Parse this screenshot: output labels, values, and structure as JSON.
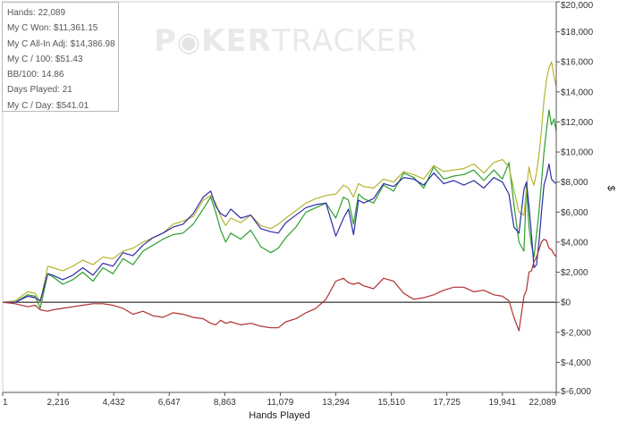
{
  "watermark": {
    "prefix": "P",
    "suffix": "KER",
    "bold_tail": "TRACKER"
  },
  "stats": [
    "Hands: 22,089",
    "My C Won: $11,361.15",
    "My C All-In Adj: $14,386.98",
    "My C / 100: $51.43",
    "BB/100: 14.86",
    "Days Played: 21",
    "My C / Day: $541.01"
  ],
  "chart_data": {
    "type": "line",
    "xlabel": "Hands Played",
    "ylabel": "$",
    "xlim": [
      1,
      22089
    ],
    "ylim": [
      -6000,
      20000
    ],
    "x_ticks": [
      1,
      2216,
      4432,
      6647,
      8863,
      11079,
      13294,
      15510,
      17725,
      19941,
      22089
    ],
    "x_tick_labels": [
      "1",
      "2,216",
      "4,432",
      "6,647",
      "8,863",
      "11,079",
      "13,294",
      "15,510",
      "17,725",
      "19,941",
      "22,089"
    ],
    "y_ticks": [
      -6000,
      -4000,
      -2000,
      0,
      2000,
      4000,
      6000,
      8000,
      10000,
      12000,
      14000,
      16000,
      18000,
      20000
    ],
    "y_tick_labels": [
      "$-6,000",
      "$-4,000",
      "$-2,000",
      "$0",
      "$2,000",
      "$4,000",
      "$6,000",
      "$8,000",
      "$10,000",
      "$12,000",
      "$14,000",
      "$16,000",
      "$18,000",
      "$20,000"
    ],
    "grid": false,
    "legend": "none",
    "series": [
      {
        "color": "#2e9e2e",
        "x": [
          1,
          500,
          1000,
          1300,
          1500,
          1800,
          2000,
          2400,
          2800,
          3200,
          3600,
          4000,
          4400,
          4800,
          5200,
          5600,
          6000,
          6400,
          6800,
          7200,
          7600,
          8000,
          8300,
          8500,
          8700,
          8900,
          9100,
          9500,
          9900,
          10300,
          10700,
          11000,
          11300,
          11700,
          12100,
          12500,
          12900,
          13294,
          13600,
          13800,
          14000,
          14200,
          14400,
          14800,
          15200,
          15600,
          16000,
          16400,
          16800,
          17200,
          17600,
          18000,
          18400,
          18800,
          19200,
          19600,
          19941,
          20200,
          20400,
          20600,
          20800,
          20900,
          21000,
          21100,
          21200,
          21300,
          21400,
          21500,
          21600,
          21700,
          21800,
          21900,
          22000,
          22089
        ],
        "y": [
          0,
          0,
          500,
          400,
          -400,
          1900,
          1700,
          1200,
          1500,
          2000,
          1400,
          2300,
          1900,
          2900,
          2500,
          3400,
          3800,
          4200,
          4500,
          4600,
          5200,
          6200,
          7000,
          6000,
          4800,
          4000,
          4600,
          4200,
          4800,
          3700,
          3300,
          3600,
          4300,
          5000,
          6000,
          6300,
          6600,
          5600,
          7000,
          6800,
          5200,
          7200,
          6900,
          6600,
          7800,
          7400,
          8600,
          8300,
          7600,
          9000,
          8200,
          8400,
          8500,
          8800,
          8100,
          8800,
          8200,
          9300,
          6500,
          4000,
          3400,
          7800,
          5000,
          3800,
          3000,
          4500,
          6000,
          8000,
          10000,
          11500,
          12800,
          11800,
          12200,
          11361
        ]
      },
      {
        "color": "#b4b432",
        "x": [
          1,
          500,
          1000,
          1300,
          1500,
          1800,
          2000,
          2400,
          2800,
          3200,
          3600,
          4000,
          4400,
          4800,
          5200,
          5600,
          6000,
          6400,
          6800,
          7200,
          7600,
          8000,
          8300,
          8500,
          8700,
          8900,
          9100,
          9500,
          9900,
          10300,
          10700,
          11000,
          11300,
          11700,
          12100,
          12500,
          12900,
          13294,
          13600,
          13800,
          14000,
          14200,
          14400,
          14800,
          15200,
          15600,
          16000,
          16400,
          16800,
          17200,
          17600,
          18000,
          18400,
          18800,
          19200,
          19600,
          19941,
          20200,
          20400,
          20600,
          20800,
          20900,
          21000,
          21100,
          21200,
          21300,
          21400,
          21500,
          21600,
          21700,
          21800,
          21900,
          22000,
          22089
        ],
        "y": [
          0,
          100,
          700,
          600,
          0,
          2400,
          2300,
          2100,
          2400,
          2800,
          2500,
          3000,
          2900,
          3400,
          3600,
          4000,
          4300,
          4600,
          5200,
          5400,
          5700,
          6800,
          7100,
          6600,
          5700,
          5100,
          5600,
          5300,
          5800,
          5100,
          4900,
          5200,
          5600,
          6100,
          6600,
          6900,
          7100,
          7200,
          7800,
          7600,
          7000,
          7900,
          7700,
          7600,
          8200,
          8000,
          8700,
          8500,
          8200,
          9100,
          8700,
          8800,
          8900,
          9200,
          8600,
          9300,
          9500,
          9000,
          7500,
          6000,
          5800,
          7500,
          9000,
          8200,
          7800,
          8600,
          9800,
          11500,
          13500,
          14800,
          15600,
          16000,
          15000,
          14387
        ]
      },
      {
        "color": "#2c2ca8",
        "x": [
          1,
          500,
          1000,
          1300,
          1500,
          1800,
          2000,
          2400,
          2800,
          3200,
          3600,
          4000,
          4400,
          4800,
          5200,
          5600,
          6000,
          6400,
          6800,
          7200,
          7600,
          8000,
          8300,
          8500,
          8700,
          8900,
          9100,
          9500,
          9900,
          10300,
          10700,
          11000,
          11300,
          11700,
          12100,
          12500,
          12900,
          13294,
          13600,
          13800,
          14000,
          14200,
          14400,
          14800,
          15200,
          15600,
          16000,
          16400,
          16800,
          17200,
          17600,
          18000,
          18400,
          18800,
          19200,
          19600,
          19941,
          20200,
          20400,
          20600,
          20800,
          20900,
          21000,
          21100,
          21200,
          21300,
          21400,
          21500,
          21600,
          21700,
          21800,
          21900,
          22000,
          22089
        ],
        "y": [
          0,
          0,
          400,
          300,
          100,
          1900,
          1800,
          1500,
          1800,
          2300,
          1800,
          2600,
          2400,
          3300,
          3100,
          3800,
          4300,
          4600,
          5000,
          5200,
          5900,
          7000,
          7400,
          6400,
          5900,
          5700,
          6200,
          5600,
          5800,
          4900,
          4700,
          4600,
          5300,
          5800,
          6300,
          6500,
          6600,
          4400,
          5600,
          6200,
          4500,
          6800,
          6600,
          6900,
          7900,
          7700,
          8300,
          8200,
          7800,
          8600,
          7900,
          8100,
          7800,
          8100,
          7600,
          8300,
          8000,
          7200,
          5000,
          4600,
          7500,
          8000,
          6400,
          4500,
          2300,
          2500,
          4000,
          6000,
          7800,
          8400,
          9200,
          8200,
          8000,
          7900
        ]
      },
      {
        "color": "#b03030",
        "x": [
          1,
          500,
          1000,
          1300,
          1500,
          1800,
          2000,
          2400,
          2800,
          3200,
          3600,
          4000,
          4400,
          4800,
          5200,
          5600,
          6000,
          6400,
          6800,
          7200,
          7600,
          8000,
          8300,
          8500,
          8700,
          8900,
          9100,
          9500,
          9900,
          10300,
          10700,
          11000,
          11300,
          11700,
          12100,
          12500,
          12900,
          13294,
          13600,
          13800,
          14000,
          14200,
          14400,
          14800,
          15200,
          15600,
          16000,
          16400,
          16800,
          17200,
          17600,
          18000,
          18400,
          18800,
          19200,
          19600,
          19941,
          20200,
          20400,
          20600,
          20800,
          20900,
          21000,
          21100,
          21200,
          21300,
          21400,
          21500,
          21600,
          21700,
          21800,
          21900,
          22000,
          22089
        ],
        "y": [
          0,
          -100,
          -300,
          -200,
          -500,
          -600,
          -500,
          -400,
          -300,
          -200,
          -100,
          -100,
          -200,
          -400,
          -800,
          -600,
          -900,
          -1000,
          -700,
          -800,
          -1000,
          -1100,
          -1400,
          -1500,
          -1200,
          -1400,
          -1300,
          -1500,
          -1400,
          -1600,
          -1700,
          -1700,
          -1300,
          -1100,
          -700,
          -400,
          200,
          1400,
          1600,
          1300,
          1200,
          1300,
          1100,
          900,
          1600,
          1400,
          600,
          200,
          300,
          500,
          800,
          1000,
          1000,
          700,
          800,
          500,
          400,
          100,
          -1000,
          -1900,
          400,
          800,
          2000,
          2100,
          2700,
          3000,
          3500,
          4000,
          4200,
          4100,
          3600,
          3500,
          3200,
          3026
        ]
      }
    ]
  }
}
